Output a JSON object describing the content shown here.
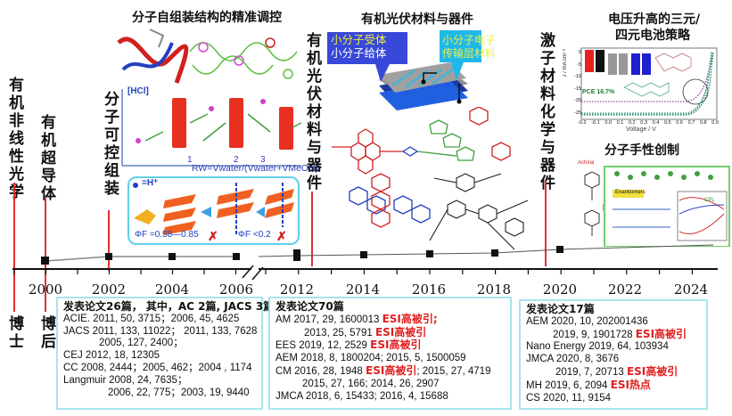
{
  "vertical_labels": {
    "nonlinear_optics": "有机非线性光学",
    "phd": "博士",
    "superconductor": "有机超导体",
    "postdoc": "博后",
    "assembly": "分子可控组装",
    "opv": "有机光伏材料与器件",
    "exciton": "激子材料化学与器件"
  },
  "titles": {
    "self_assembly": "分子自组装结构的精准调控",
    "opv_materials": "有机光伏材料与器件",
    "ternary_line1": "电压升高的三元/",
    "ternary_line2": "四元电池策略",
    "chirality": "分子手性创制"
  },
  "figure_text": {
    "hcl_axis": "[HCl]",
    "rw_axis": "RW=Vwater/(Vwater+VMeOH)",
    "compound_labels": [
      "1",
      "2",
      "3"
    ],
    "proton_legend": "=H⁺",
    "phi_high": "ΦF =0.58—0.85",
    "phi_low": "ΦF <0.2",
    "acceptor": "小分子受体",
    "donor": "小分子给体",
    "etl_line1": "小分子电子",
    "etl_line2": "传输层材料",
    "pce": "PCE 16.7%",
    "jv_xlabel": "Voltage / V",
    "jv_ylabel": "J / mA cm⁻²",
    "jv_xticks": [
      "-0.2",
      "-0.1",
      "0.0",
      "0.1",
      "0.2",
      "0.3",
      "0.4",
      "0.5",
      "0.6",
      "0.7",
      "0.8",
      "0.9"
    ],
    "jv_yticks": [
      "0",
      "-5",
      "-10",
      "-15",
      "-20",
      "-25"
    ],
    "achiral": "Achiral",
    "enantiomers": "Enantiomers",
    "cpl": "CPL"
  },
  "timeline": {
    "years": [
      "2000",
      "2002",
      "2004",
      "2006",
      "2012",
      "2014",
      "2016",
      "2018",
      "2020",
      "2022",
      "2024"
    ],
    "colors": {
      "axis": "#111111",
      "milestone_line": "#e03030",
      "box_border": "#a8e4ec",
      "esi": "#e02020"
    }
  },
  "boxes": {
    "b1": {
      "header": "发表论文26篇， 其中，AC 2篇, JACS 3篇",
      "lines": [
        "ACIE. 2011, 50, 3715；2006, 45, 4625",
        "JACS 2011, 133, 11022； 2011, 133, 7628",
        "2005, 127, 2400；",
        "CEJ    2012, 18, 12305",
        "CC   2008, 2444；2005, 462；2004 , 1174",
        "Langmuir 2008, 24, 7635；",
        "2006, 22, 775；2003, 19, 9440"
      ]
    },
    "b2": {
      "header": "发表论文70篇",
      "esi": "ESI高被引",
      "lines": [
        "AM     2017, 29, 1600013",
        "2013, 25, 5791",
        "EES  2019, 12, 2529",
        "AEM 2018, 8, 1800204; 2015, 5, 1500059",
        "CM   2016, 28, 1948",
        "; 2015, 27, 4719",
        "2015, 27, 166;        2014, 26, 2907",
        "JMCA 2018, 6, 15433;    2016, 4, 15688"
      ]
    },
    "b3": {
      "header": "发表论文17篇",
      "esi_high": "ESI高被引",
      "esi_hot": "ESI热点",
      "lines": [
        "AEM 2020, 10, 202001436",
        "2019, 9, 1901728",
        "Nano Energy  2019, 64, 103934",
        "JMCA 2020, 8, 3676",
        "2019, 7, 20713",
        "MH      2019, 6, 2094",
        "CS      2020, 11, 9154"
      ]
    }
  }
}
